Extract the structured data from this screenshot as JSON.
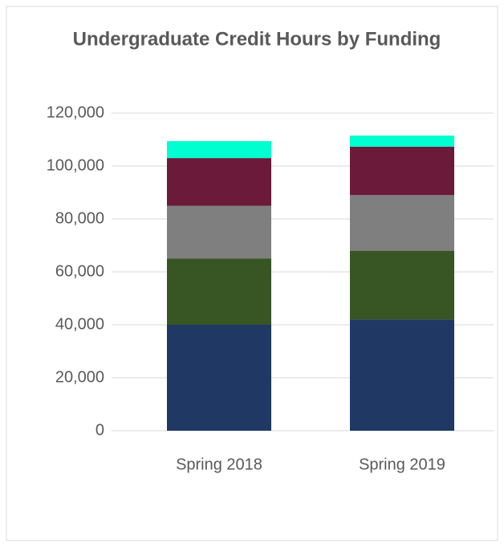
{
  "chart_data": {
    "type": "stacked_bar",
    "title": "Undergraduate Credit Hours by Funding",
    "categories": [
      "Spring 2018",
      "Spring 2019"
    ],
    "series": [
      {
        "color": "#1f3864",
        "values": [
          40000,
          42000
        ]
      },
      {
        "color": "#375623",
        "values": [
          25000,
          26000
        ]
      },
      {
        "color": "#7f7f7f",
        "values": [
          20000,
          21000
        ]
      },
      {
        "color": "#6b1a3a",
        "values": [
          18000,
          18300
        ]
      },
      {
        "color": "#00ffd0",
        "values": [
          6400,
          4200
        ]
      }
    ],
    "ylim": [
      0,
      120000
    ],
    "yticks": [
      {
        "value": 0,
        "label": "0"
      },
      {
        "value": 20000,
        "label": "20,000"
      },
      {
        "value": 40000,
        "label": "40,000"
      },
      {
        "value": 60000,
        "label": "60,000"
      },
      {
        "value": 80000,
        "label": "80,000"
      },
      {
        "value": 100000,
        "label": "100,000"
      },
      {
        "value": 120000,
        "label": "120,000"
      }
    ],
    "grid": true
  }
}
